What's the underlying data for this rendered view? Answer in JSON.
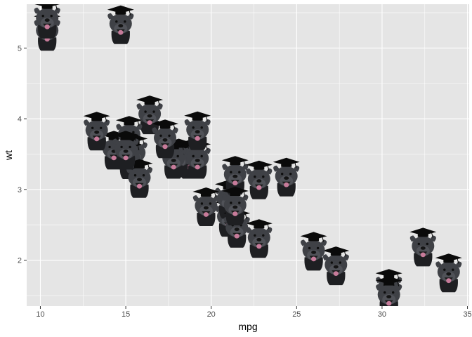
{
  "chart_data": {
    "type": "scatter",
    "title": "",
    "xlabel": "mpg",
    "ylabel": "wt",
    "xlim": [
      9.2,
      35.1
    ],
    "ylim": [
      1.35,
      5.62
    ],
    "x_ticks": [
      10,
      15,
      20,
      25,
      30,
      35
    ],
    "y_ticks": [
      2,
      3,
      4,
      5
    ],
    "grid": true,
    "legend": "none",
    "marker_icon": "dog-graduation-cap-icon",
    "colors": {
      "panel": "#e5e5e5",
      "grid_major": "#ffffff",
      "dog_fur": "#3f4146",
      "cap": "#0a0a0a",
      "tongue": "#c77b9a"
    },
    "points": [
      {
        "x": 21.0,
        "y": 2.62
      },
      {
        "x": 21.0,
        "y": 2.875
      },
      {
        "x": 22.8,
        "y": 2.32
      },
      {
        "x": 21.4,
        "y": 3.215
      },
      {
        "x": 18.7,
        "y": 3.44
      },
      {
        "x": 18.1,
        "y": 3.46
      },
      {
        "x": 14.3,
        "y": 3.57
      },
      {
        "x": 24.4,
        "y": 3.19
      },
      {
        "x": 22.8,
        "y": 3.15
      },
      {
        "x": 19.2,
        "y": 3.44
      },
      {
        "x": 17.8,
        "y": 3.44
      },
      {
        "x": 16.4,
        "y": 4.07
      },
      {
        "x": 17.3,
        "y": 3.73
      },
      {
        "x": 15.2,
        "y": 3.78
      },
      {
        "x": 10.4,
        "y": 5.25
      },
      {
        "x": 10.4,
        "y": 5.424
      },
      {
        "x": 14.7,
        "y": 5.345
      },
      {
        "x": 32.4,
        "y": 2.2
      },
      {
        "x": 30.4,
        "y": 1.615
      },
      {
        "x": 33.9,
        "y": 1.835
      },
      {
        "x": 21.5,
        "y": 2.465
      },
      {
        "x": 15.5,
        "y": 3.52
      },
      {
        "x": 15.2,
        "y": 3.435
      },
      {
        "x": 13.3,
        "y": 3.84
      },
      {
        "x": 19.2,
        "y": 3.845
      },
      {
        "x": 27.3,
        "y": 1.935
      },
      {
        "x": 26.0,
        "y": 2.14
      },
      {
        "x": 30.4,
        "y": 1.513
      },
      {
        "x": 15.8,
        "y": 3.17
      },
      {
        "x": 19.7,
        "y": 2.77
      },
      {
        "x": 15.0,
        "y": 3.57
      },
      {
        "x": 21.4,
        "y": 2.78
      }
    ]
  }
}
